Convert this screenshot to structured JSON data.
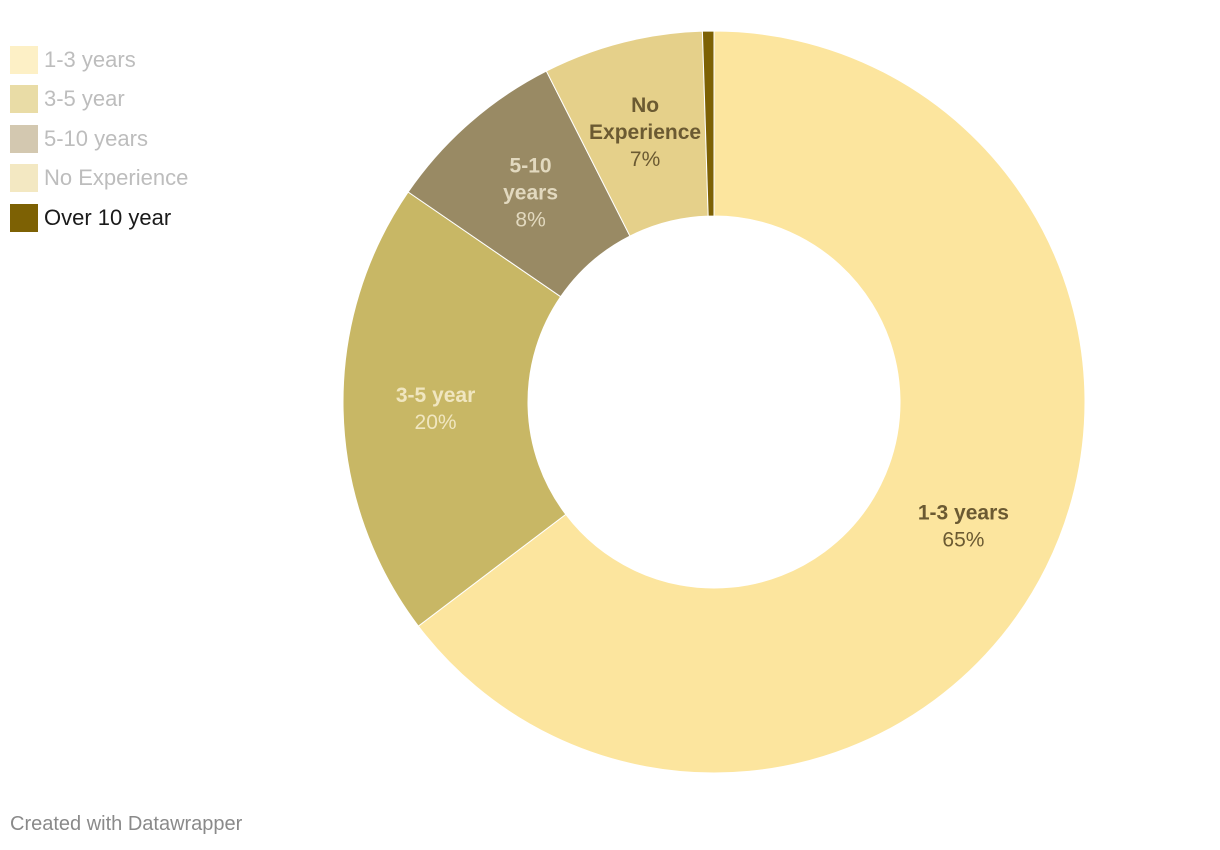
{
  "chart_data": {
    "type": "pie",
    "donut": true,
    "legend_position": "top-left",
    "series": [
      {
        "name": "1-3 years",
        "value": 65,
        "color": "#fce59e",
        "legend_text_color": "#bdbdbd",
        "slice_label": [
          "1-3 years"
        ],
        "value_label": "65%",
        "label_color": "#6b5a32"
      },
      {
        "name": "3-5 year",
        "value": 20,
        "color": "#c8b765",
        "legend_text_color": "#bdbdbd",
        "slice_label": [
          "3-5 year"
        ],
        "value_label": "20%",
        "label_color": "#f0e6c0"
      },
      {
        "name": "5-10 years",
        "value": 8,
        "color": "#998a64",
        "legend_text_color": "#bdbdbd",
        "slice_label": [
          "5-10",
          "years"
        ],
        "value_label": "8%",
        "label_color": "#e2d9bf"
      },
      {
        "name": "No Experience",
        "value": 7,
        "color": "#e5d08a",
        "legend_text_color": "#bdbdbd",
        "slice_label": [
          "No",
          "Experience"
        ],
        "value_label": "7%",
        "label_color": "#6b5a32"
      },
      {
        "name": "Over 10 year",
        "value": 0.5,
        "color": "#7d6104",
        "legend_text_color": "#1a1a1a"
      }
    ]
  },
  "legend_colors": [
    "#fdf0c6",
    "#e9dca6",
    "#d3c8b0",
    "#f3e8c2",
    "#7d6104"
  ],
  "footer": {
    "text": "Created with Datawrapper"
  }
}
